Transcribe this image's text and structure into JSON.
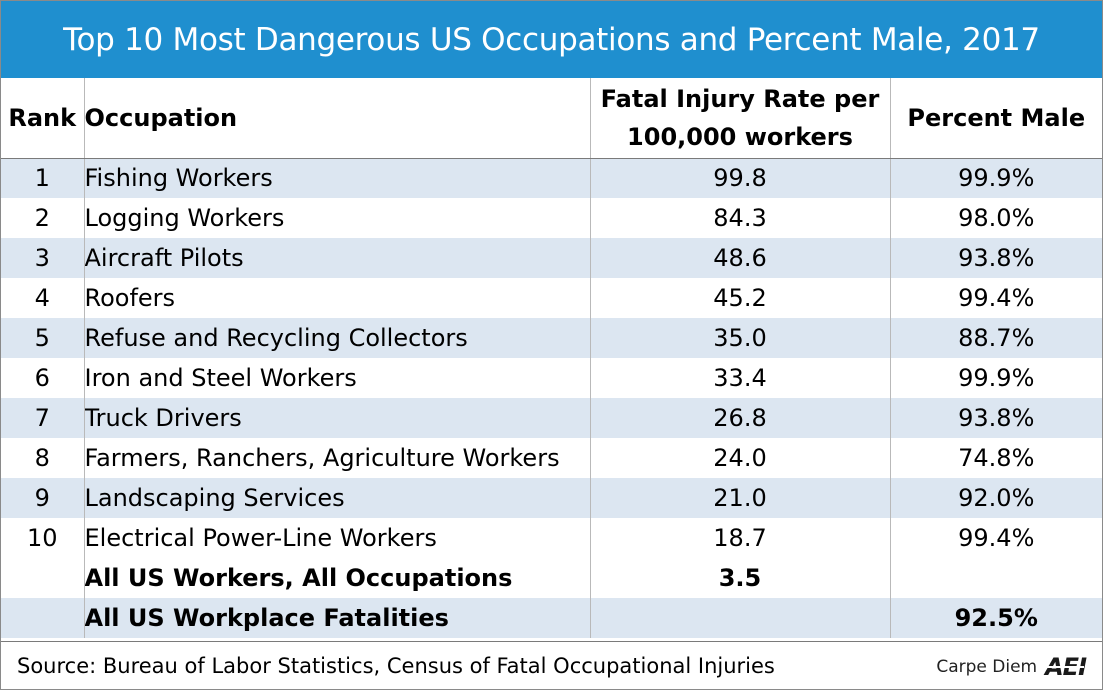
{
  "title": "Top 10 Most Dangerous US Occupations and Percent Male, 2017",
  "columns": {
    "rank": "Rank",
    "occupation": "Occupation",
    "rate_line1": "Fatal Injury Rate per",
    "rate_line2": "100,000 workers",
    "male": "Percent Male"
  },
  "rows": [
    {
      "rank": "1",
      "occupation": "Fishing Workers",
      "rate": "99.8",
      "male": "99.9%"
    },
    {
      "rank": "2",
      "occupation": "Logging Workers",
      "rate": "84.3",
      "male": "98.0%"
    },
    {
      "rank": "3",
      "occupation": "Aircraft Pilots",
      "rate": "48.6",
      "male": "93.8%"
    },
    {
      "rank": "4",
      "occupation": "Roofers",
      "rate": "45.2",
      "male": "99.4%"
    },
    {
      "rank": "5",
      "occupation": "Refuse and Recycling Collectors",
      "rate": "35.0",
      "male": "88.7%"
    },
    {
      "rank": "6",
      "occupation": "Iron and Steel Workers",
      "rate": "33.4",
      "male": "99.9%"
    },
    {
      "rank": "7",
      "occupation": "Truck Drivers",
      "rate": "26.8",
      "male": "93.8%"
    },
    {
      "rank": "8",
      "occupation": "Farmers, Ranchers, Agriculture Workers",
      "rate": "24.0",
      "male": "74.8%"
    },
    {
      "rank": "9",
      "occupation": "Landscaping Services",
      "rate": "21.0",
      "male": "92.0%"
    },
    {
      "rank": "10",
      "occupation": "Electrical Power-Line Workers",
      "rate": "18.7",
      "male": "99.4%"
    }
  ],
  "summary": [
    {
      "rank": "",
      "occupation": "All US Workers, All Occupations",
      "rate": "3.5",
      "male": ""
    },
    {
      "rank": "",
      "occupation": "All US Workplace Fatalities",
      "rate": "",
      "male": "92.5%"
    }
  ],
  "footer": {
    "source": "Source: Bureau of Labor Statistics, Census of Fatal Occupational Injuries",
    "credit": "Carpe Diem",
    "logo": "AEI"
  },
  "colors": {
    "title_bar": "#1f8fcf",
    "row_shade": "#dce6f1"
  }
}
